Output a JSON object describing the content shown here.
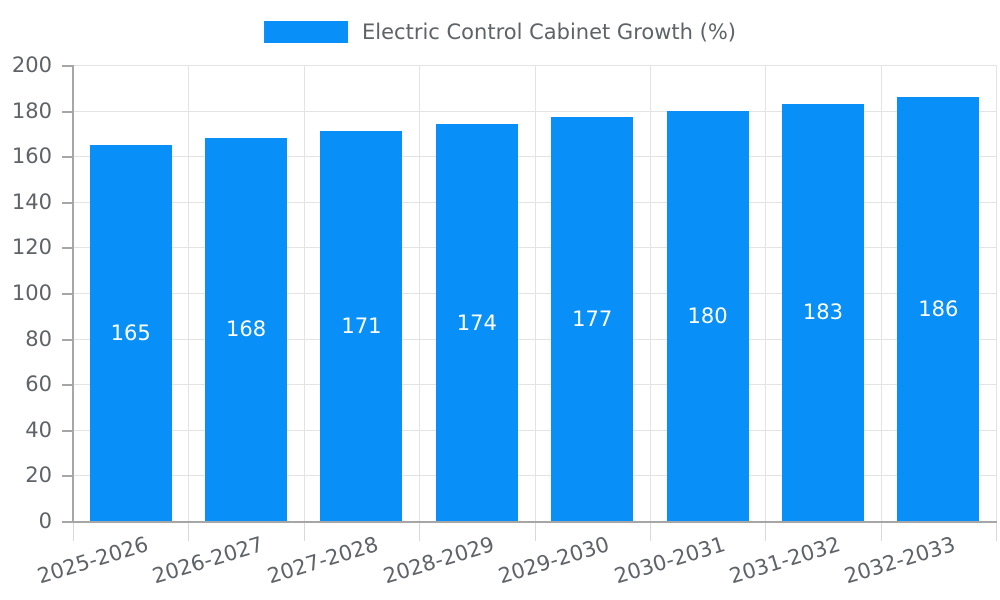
{
  "chart_data": {
    "type": "bar",
    "title": "Electric Control Cabinet Growth (%)",
    "categories": [
      "2025-2026",
      "2026-2027",
      "2027-2028",
      "2028-2029",
      "2029-2030",
      "2030-2031",
      "2031-2032",
      "2032-2033"
    ],
    "values": [
      165,
      168,
      171,
      174,
      177,
      180,
      183,
      186
    ],
    "xlabel": "",
    "ylabel": "",
    "ylim": [
      0,
      200
    ],
    "ytick_step": 20,
    "ytick_labels": [
      "0",
      "20",
      "40",
      "60",
      "80",
      "100",
      "120",
      "140",
      "160",
      "180",
      "200"
    ],
    "grid": true,
    "legend": {
      "label": "Electric Control Cabinet Growth (%)",
      "position": "top-center"
    }
  },
  "colors": {
    "bar": "#0890F8",
    "background": "#FFFFFF",
    "grid_line": "#E3E3E3",
    "axis_line": "#A6A6A6",
    "axis_tick_minor": "#D9D9D9",
    "text": "#5F6368",
    "value_label": "#FFFFFF"
  }
}
